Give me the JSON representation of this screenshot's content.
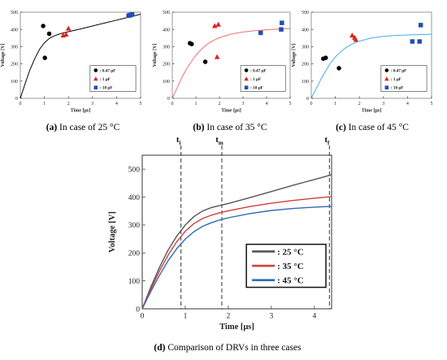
{
  "figure": {
    "captions": {
      "a": {
        "tag": "(a)",
        "text": " In case of 25 °C"
      },
      "b": {
        "tag": "(b)",
        "text": " In case of 35 °C"
      },
      "c": {
        "tag": "(c)",
        "text": " In case of 45 °C"
      },
      "d": {
        "tag": "(d)",
        "text": " Comparison of DRVs in three cases"
      }
    },
    "colors": {
      "cap_025": "#000000",
      "cap_1": "#e0201c",
      "cap_10": "#1f4fb5"
    }
  },
  "chart_data": [
    {
      "id": "a",
      "type": "scatter",
      "xlabel": "Time [μs]",
      "ylabel": "Voltage [V]",
      "xlim": [
        0,
        5
      ],
      "ylim": [
        0,
        500
      ],
      "xticks": [
        0,
        1,
        2,
        3,
        4,
        5
      ],
      "yticks": [
        0,
        100,
        200,
        300,
        400,
        500
      ],
      "curve": {
        "color": "#000000",
        "x": [
          0,
          0.2,
          0.4,
          0.6,
          0.8,
          1.0,
          1.2,
          1.4,
          1.6,
          1.8,
          2.0,
          2.5,
          3.0,
          3.5,
          4.0,
          4.5,
          5.0
        ],
        "y": [
          0,
          85,
          165,
          230,
          285,
          322,
          347,
          362,
          372,
          380,
          387,
          403,
          420,
          437,
          454,
          471,
          488
        ]
      },
      "legend": [
        {
          "label": ": 0.47 μF",
          "marker": "circle",
          "color": "#000000"
        },
        {
          "label": ": 1 μF",
          "marker": "triangle",
          "color": "#e0201c"
        },
        {
          "label": ": 10 μF",
          "marker": "square",
          "color": "#1f4fb5"
        }
      ],
      "series": [
        {
          "label": ": 0.47 μF",
          "marker": "circle",
          "color": "#000000",
          "points": [
            [
              0.95,
              420
            ],
            [
              1.2,
              375
            ],
            [
              1.02,
              235
            ]
          ]
        },
        {
          "label": ": 1 μF",
          "marker": "triangle",
          "color": "#e0201c",
          "points": [
            [
              1.78,
              365
            ],
            [
              1.9,
              370
            ],
            [
              2.0,
              405
            ]
          ]
        },
        {
          "label": ": 10 μF",
          "marker": "square",
          "color": "#1f4fb5",
          "points": [
            [
              4.5,
              480
            ],
            [
              4.55,
              482
            ],
            [
              4.6,
              485
            ],
            [
              4.65,
              487
            ]
          ]
        }
      ]
    },
    {
      "id": "b",
      "type": "scatter",
      "xlabel": "Time [μs]",
      "ylabel": "Voltage [V]",
      "xlim": [
        0,
        5
      ],
      "ylim": [
        0,
        500
      ],
      "xticks": [
        0,
        1,
        2,
        3,
        4,
        5
      ],
      "yticks": [
        0,
        100,
        200,
        300,
        400,
        500
      ],
      "curve": {
        "color": "#f07070",
        "x": [
          0,
          0.2,
          0.4,
          0.6,
          0.8,
          1.0,
          1.2,
          1.4,
          1.6,
          1.8,
          2.0,
          2.5,
          3.0,
          3.5,
          4.0,
          4.5,
          5.0
        ],
        "y": [
          0,
          60,
          120,
          170,
          212,
          250,
          280,
          305,
          325,
          340,
          352,
          373,
          385,
          393,
          398,
          402,
          405
        ]
      },
      "legend": [
        {
          "label": ": 0.47 μF",
          "marker": "circle",
          "color": "#000000"
        },
        {
          "label": ": 1 μF",
          "marker": "triangle",
          "color": "#e0201c"
        },
        {
          "label": ": 10 μF",
          "marker": "square",
          "color": "#1f4fb5"
        }
      ],
      "series": [
        {
          "label": ": 0.47 μF",
          "marker": "circle",
          "color": "#000000",
          "points": [
            [
              0.75,
              320
            ],
            [
              0.82,
              315
            ],
            [
              1.4,
              212
            ]
          ]
        },
        {
          "label": ": 1 μF",
          "marker": "triangle",
          "color": "#e0201c",
          "points": [
            [
              1.8,
              420
            ],
            [
              1.95,
              428
            ],
            [
              1.9,
              240
            ]
          ]
        },
        {
          "label": ": 10 μF",
          "marker": "square",
          "color": "#1f4fb5",
          "points": [
            [
              3.75,
              380
            ],
            [
              4.62,
              400
            ],
            [
              4.65,
              438
            ]
          ]
        }
      ]
    },
    {
      "id": "c",
      "type": "scatter",
      "xlabel": "Time [μs]",
      "ylabel": "Voltage [V]",
      "xlim": [
        0,
        5
      ],
      "ylim": [
        0,
        500
      ],
      "xticks": [
        0,
        1,
        2,
        3,
        4,
        5
      ],
      "yticks": [
        0,
        100,
        200,
        300,
        400,
        500
      ],
      "curve": {
        "color": "#3fb0e8",
        "x": [
          0,
          0.2,
          0.4,
          0.6,
          0.8,
          1.0,
          1.2,
          1.4,
          1.6,
          1.8,
          2.0,
          2.5,
          3.0,
          3.5,
          4.0,
          4.5,
          5.0
        ],
        "y": [
          0,
          55,
          110,
          160,
          205,
          240,
          268,
          290,
          308,
          322,
          332,
          350,
          360,
          365,
          368,
          370,
          372
        ]
      },
      "legend": [
        {
          "label": ": 0.47 μF",
          "marker": "circle",
          "color": "#000000"
        },
        {
          "label": ": 1 μF",
          "marker": "triangle",
          "color": "#e0201c"
        },
        {
          "label": ": 10 μF",
          "marker": "square",
          "color": "#1f4fb5"
        }
      ],
      "series": [
        {
          "label": ": 0.47 μF",
          "marker": "circle",
          "color": "#000000",
          "points": [
            [
              0.5,
              230
            ],
            [
              0.6,
              235
            ],
            [
              1.15,
              175
            ]
          ]
        },
        {
          "label": ": 1 μF",
          "marker": "triangle",
          "color": "#e0201c",
          "points": [
            [
              1.7,
              365
            ],
            [
              1.8,
              352
            ],
            [
              1.85,
              340
            ]
          ]
        },
        {
          "label": ": 10 μF",
          "marker": "square",
          "color": "#1f4fb5",
          "points": [
            [
              4.2,
              330
            ],
            [
              4.5,
              330
            ],
            [
              4.55,
              425
            ]
          ]
        }
      ]
    },
    {
      "id": "d",
      "type": "line",
      "xlabel": "Time [μs]",
      "ylabel": "Voltage [V]",
      "xlim": [
        0,
        4.4
      ],
      "ylim": [
        0,
        550
      ],
      "xticks": [
        0,
        1,
        2,
        3,
        4
      ],
      "yticks": [
        0,
        100,
        200,
        300,
        400,
        500
      ],
      "markers": [
        {
          "label": "t",
          "sub": "i",
          "x": 0.9
        },
        {
          "label": "t",
          "sub": "m",
          "x": 1.85
        },
        {
          "label": "t",
          "sub": "f",
          "x": 4.35
        }
      ],
      "legend": [
        {
          "label": ": 25 °C",
          "color": "#555555"
        },
        {
          "label": ": 35 °C",
          "color": "#d0403c"
        },
        {
          "label": ": 45 °C",
          "color": "#2f6db0"
        }
      ],
      "series": [
        {
          "label": ": 25 °C",
          "color": "#555555",
          "x": [
            0,
            0.2,
            0.4,
            0.6,
            0.8,
            1.0,
            1.2,
            1.4,
            1.6,
            1.8,
            2.0,
            2.5,
            3.0,
            3.5,
            4.0,
            4.4
          ],
          "y": [
            0,
            78,
            148,
            210,
            260,
            300,
            330,
            350,
            362,
            370,
            377,
            398,
            420,
            442,
            463,
            480
          ]
        },
        {
          "label": ": 35 °C",
          "color": "#d0403c",
          "x": [
            0,
            0.2,
            0.4,
            0.6,
            0.8,
            1.0,
            1.2,
            1.4,
            1.6,
            1.8,
            2.0,
            2.5,
            3.0,
            3.5,
            4.0,
            4.4
          ],
          "y": [
            0,
            70,
            135,
            192,
            240,
            278,
            305,
            323,
            335,
            344,
            351,
            366,
            378,
            388,
            396,
            402
          ]
        },
        {
          "label": ": 45 °C",
          "color": "#2f6db0",
          "x": [
            0,
            0.2,
            0.4,
            0.6,
            0.8,
            1.0,
            1.2,
            1.4,
            1.6,
            1.8,
            2.0,
            2.5,
            3.0,
            3.5,
            4.0,
            4.4
          ],
          "y": [
            0,
            62,
            120,
            172,
            215,
            250,
            276,
            295,
            308,
            318,
            326,
            341,
            352,
            359,
            364,
            367
          ]
        }
      ]
    }
  ]
}
